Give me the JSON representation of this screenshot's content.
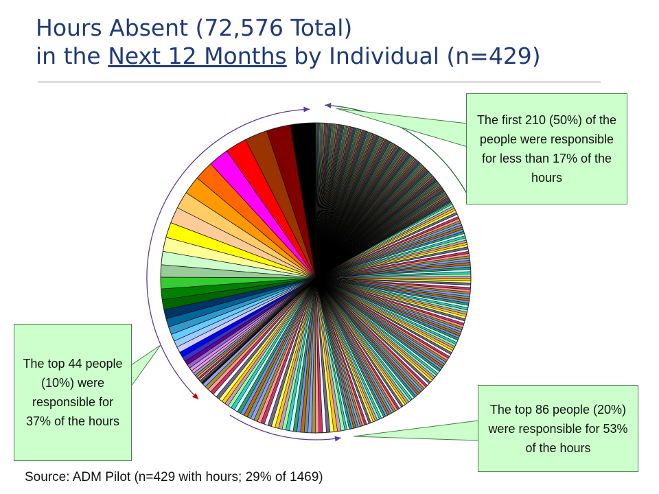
{
  "title": {
    "line1": "Hours Absent (72,576 Total)",
    "line2_prefix": "in the ",
    "line2_underlined": "Next 12 Months",
    "line2_suffix": " by Individual (n=429)"
  },
  "callouts": {
    "first_half": "The first 210 (50%) of the people were responsible for less than 17% of the hours",
    "top10": "The top 44 people (10%) were responsible for 37% of the hours",
    "top20": "The top 86 people (20%) were responsible for 53% of the hours"
  },
  "source": "Source: ADM Pilot (n=429 with hours;  29% of 1469)",
  "chart_data": {
    "type": "pie",
    "title": "Hours Absent (72,576 Total) in the Next 12 Months by Individual (n=429)",
    "total_hours": 72576,
    "n_individuals": 429,
    "slice_order": "counterclockwise from top, largest first",
    "cumulative_shares": [
      {
        "people": 44,
        "people_pct": 10,
        "hours_pct": 37
      },
      {
        "people": 86,
        "people_pct": 20,
        "hours_pct": 53
      },
      {
        "people": 210,
        "people_pct": 50,
        "hours_pct": 17,
        "group": "first (smallest) half"
      }
    ],
    "largest_slice_colors": [
      "#000000",
      "#800000",
      "#993300",
      "#ff0000",
      "#ff00ff",
      "#ff6600",
      "#ff9900",
      "#ffcc66",
      "#ffcc99",
      "#ffff00",
      "#ffff99",
      "#ccffcc",
      "#99cc99",
      "#33cc33",
      "#008000",
      "#006600",
      "#003366",
      "#006699",
      "#3399cc",
      "#66ccff",
      "#99ccff",
      "#ccccff",
      "#0000ff",
      "#3333cc",
      "#660099",
      "#9966cc",
      "#cc99ff",
      "#ff99cc"
    ],
    "colors": {
      "arc_arrow": "#5b3b9a",
      "arrow_head_red": "#cc0000",
      "arrow_head_green": "#1d6b2c",
      "callout_fill": "#ccffcc",
      "title": "#1f3a78"
    }
  }
}
